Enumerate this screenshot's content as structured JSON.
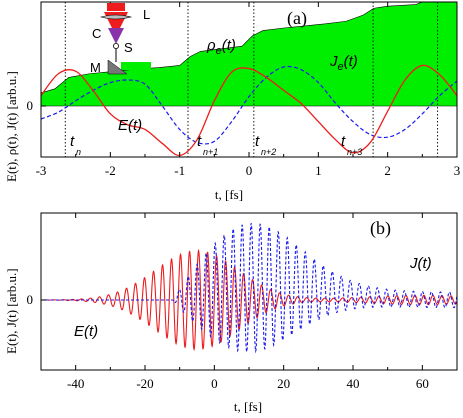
{
  "chart_data": [
    {
      "panel": "(a)",
      "type": "line",
      "xlabel": "t, [fs]",
      "ylabel": "E(t), ρ(t), J(t) [arb.u.]",
      "xlim": [
        -3,
        3
      ],
      "ylim": [
        -1.0,
        2.0
      ],
      "x_ticks": [
        "-3",
        "-2",
        "-1",
        "0",
        "1",
        "2",
        "3"
      ],
      "y_ticks": [
        "0"
      ],
      "colors": {
        "E": "#ee1c1c",
        "J": "#1a1aee",
        "rho_fill": "#00ee00"
      },
      "series": [
        {
          "name": "E(t)",
          "style": "solid-red",
          "x": [
            -3,
            -2.75,
            -2.5,
            -2.25,
            -2,
            -1.75,
            -1.5,
            -1.25,
            -1,
            -0.75,
            -0.5,
            -0.25,
            0,
            0.25,
            0.5,
            0.75,
            1,
            1.25,
            1.5,
            1.75,
            2,
            2.25,
            2.5,
            2.75,
            3
          ],
          "y": [
            0.2,
            0.62,
            0.67,
            0.3,
            -0.15,
            -0.36,
            -0.45,
            -0.72,
            -0.95,
            -0.65,
            0.1,
            0.65,
            0.72,
            0.55,
            0.3,
            0.05,
            -0.3,
            -0.65,
            -0.9,
            -0.7,
            -0.1,
            0.5,
            0.78,
            0.6,
            0.2
          ]
        },
        {
          "name": "J_e(t)",
          "style": "dashed-blue",
          "x": [
            -3,
            -2.75,
            -2.5,
            -2.25,
            -2,
            -1.75,
            -1.5,
            -1.25,
            -1,
            -0.75,
            -0.5,
            -0.25,
            0,
            0.25,
            0.5,
            0.75,
            1,
            1.25,
            1.5,
            1.75,
            2,
            2.25,
            2.5,
            2.75,
            3
          ],
          "y": [
            -0.25,
            -0.12,
            0.1,
            0.3,
            0.45,
            0.5,
            0.42,
            0.0,
            -0.45,
            -0.7,
            -0.68,
            -0.3,
            0.18,
            0.55,
            0.75,
            0.7,
            0.45,
            0.05,
            -0.3,
            -0.55,
            -0.6,
            -0.45,
            -0.15,
            0.2,
            0.48
          ]
        },
        {
          "name": "ρ_e(t)",
          "style": "filled-green",
          "x": [
            -3,
            -2.8,
            -2.6,
            -2.3,
            -2.0,
            -1.7,
            -1.3,
            -1.0,
            -0.85,
            -0.7,
            -0.4,
            -0.1,
            0.05,
            0.2,
            0.5,
            0.8,
            1.1,
            1.4,
            1.65,
            1.8,
            2.0,
            2.4,
            2.6,
            2.75,
            3.0
          ],
          "y": [
            0.25,
            0.33,
            0.55,
            0.62,
            0.66,
            0.7,
            0.74,
            0.78,
            0.95,
            1.05,
            1.1,
            1.15,
            1.35,
            1.45,
            1.5,
            1.54,
            1.58,
            1.63,
            1.75,
            1.88,
            1.92,
            1.95,
            2.05,
            2.12,
            2.15
          ]
        }
      ],
      "vlines": [
        -2.65,
        -0.88,
        0.07,
        1.79,
        2.72
      ],
      "annotations": [
        {
          "text": "t",
          "sub": "n"
        },
        {
          "text": "t",
          "sub": "n+1"
        },
        {
          "text": "t",
          "sub": "n+2"
        },
        {
          "text": "t",
          "sub": "n+3"
        }
      ],
      "inset_labels": [
        "L",
        "C",
        "S",
        "M"
      ]
    },
    {
      "panel": "(b)",
      "type": "line",
      "xlabel": "t, [fs]",
      "ylabel": "E(t), J(t) [arb.u.]",
      "xlim": [
        -50,
        70
      ],
      "ylim": [
        -1.0,
        1.2
      ],
      "x_ticks": [
        "-40",
        "-20",
        "0",
        "20",
        "40",
        "60"
      ],
      "y_ticks": [
        "0"
      ],
      "colors": {
        "E": "#ee1c1c",
        "J": "#1a1aee"
      },
      "series": [
        {
          "name": "E(t)",
          "style": "solid-red",
          "model": "gaussian-modulated oscillation",
          "envelope_center_fs": -5,
          "envelope_width_fs": 17,
          "peak_amplitude": 0.95,
          "period_fs": 2.6,
          "ends_at_fs": 70
        },
        {
          "name": "J(t)",
          "style": "dashed-blue",
          "model": "oscillation growing after onset",
          "onset_fs": -12,
          "envelope_center_fs": 10,
          "peak_amplitude": 1.1,
          "period_fs": 2.6,
          "residual_amplitude": 0.15
        }
      ]
    }
  ]
}
